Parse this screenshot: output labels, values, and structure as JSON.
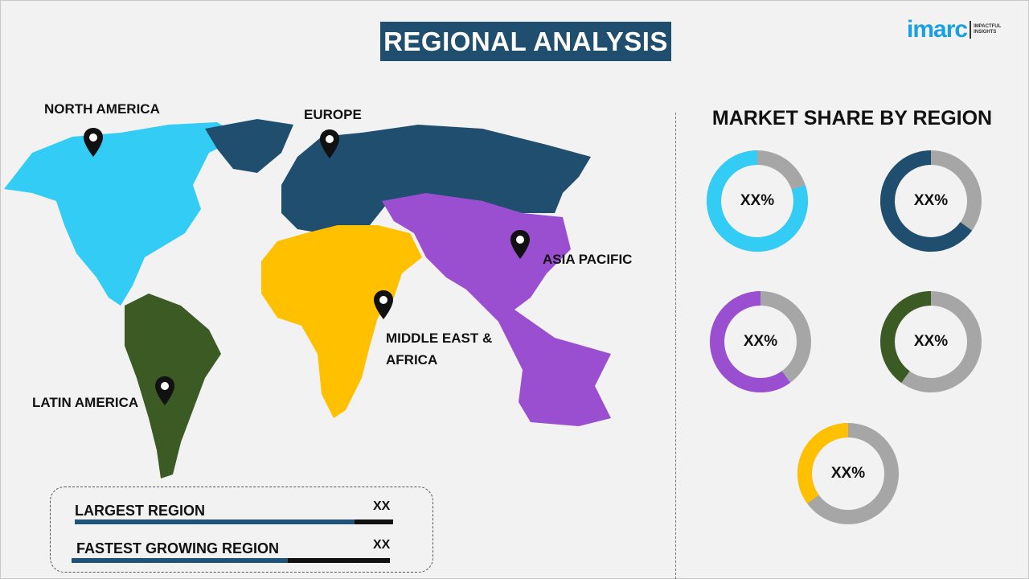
{
  "header": {
    "title": "REGIONAL ANALYSIS"
  },
  "logo": {
    "main": "imarc",
    "tagline_1": "IMPACTFUL",
    "tagline_2": "INSIGHTS"
  },
  "map": {
    "regions": [
      {
        "id": "north-america",
        "label": "NORTH AMERICA",
        "color": "#33ccf5"
      },
      {
        "id": "europe",
        "label": "EUROPE",
        "color": "#1f4e6e"
      },
      {
        "id": "asia-pacific",
        "label": "ASIA PACIFIC",
        "color": "#9a4fd0"
      },
      {
        "id": "middle-east-africa",
        "label": "MIDDLE EAST &",
        "label_2": "AFRICA",
        "color": "#ffc000"
      },
      {
        "id": "latin-america",
        "label": "LATIN AMERICA",
        "color": "#3b5a24"
      }
    ]
  },
  "market_share": {
    "title": "MARKET SHARE BY REGION",
    "remainder_color": "#a6a6a6",
    "donuts": [
      {
        "region": "north-america",
        "label": "XX%",
        "share": 0.8,
        "color": "#33ccf5"
      },
      {
        "region": "europe",
        "label": "XX%",
        "share": 0.65,
        "color": "#1f4e6e"
      },
      {
        "region": "asia-pacific",
        "label": "XX%",
        "share": 0.6,
        "color": "#9a4fd0"
      },
      {
        "region": "latin-america",
        "label": "XX%",
        "share": 0.4,
        "color": "#3b5a24"
      },
      {
        "region": "middle-east-africa",
        "label": "XX%",
        "share": 0.35,
        "color": "#ffc000"
      }
    ]
  },
  "summary": {
    "largest": {
      "label": "LARGEST REGION",
      "value": "XX",
      "fill": 0.88
    },
    "fastest": {
      "label": "FASTEST GROWING REGION",
      "value": "XX",
      "fill": 0.68
    }
  }
}
